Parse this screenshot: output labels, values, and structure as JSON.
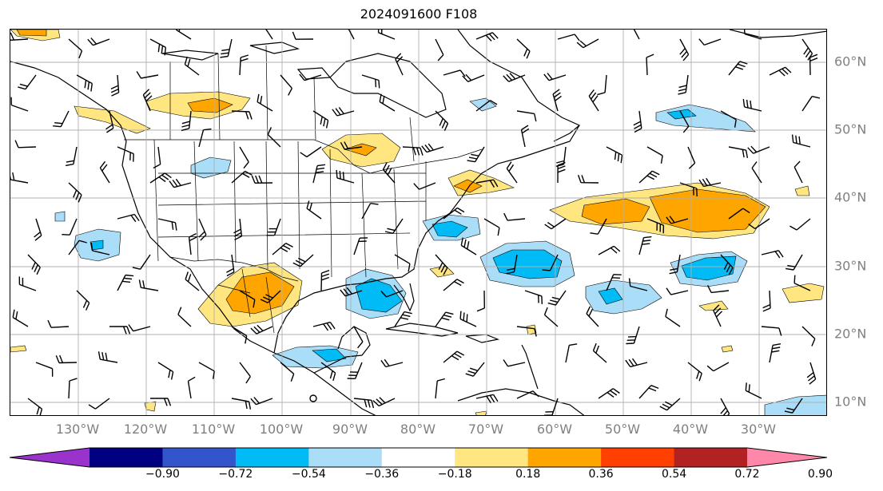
{
  "title": "2024091600 F108",
  "lon_labels": [
    "130°W",
    "120°W",
    "110°W",
    "100°W",
    "90°W",
    "80°W",
    "70°W",
    "60°W",
    "50°W",
    "40°W",
    "30°W"
  ],
  "lat_labels": [
    "60°N",
    "50°N",
    "40°N",
    "30°N",
    "20°N",
    "10°N"
  ],
  "colorbar": {
    "ticks": [
      "−0.90",
      "−0.72",
      "−0.54",
      "−0.36",
      "−0.18",
      "0.18",
      "0.36",
      "0.54",
      "0.72",
      "0.90"
    ],
    "colors": [
      "#9933cc",
      "#000080",
      "#3355cc",
      "#00bbf5",
      "#aaddf8",
      "#ffffff",
      "#ffe680",
      "#ffa500",
      "#ff4000",
      "#b22222",
      "#ff88aa"
    ]
  },
  "map": {
    "projection": "lat-lon",
    "lon_range": [
      -136,
      -16
    ],
    "lat_range": [
      8,
      65
    ]
  }
}
